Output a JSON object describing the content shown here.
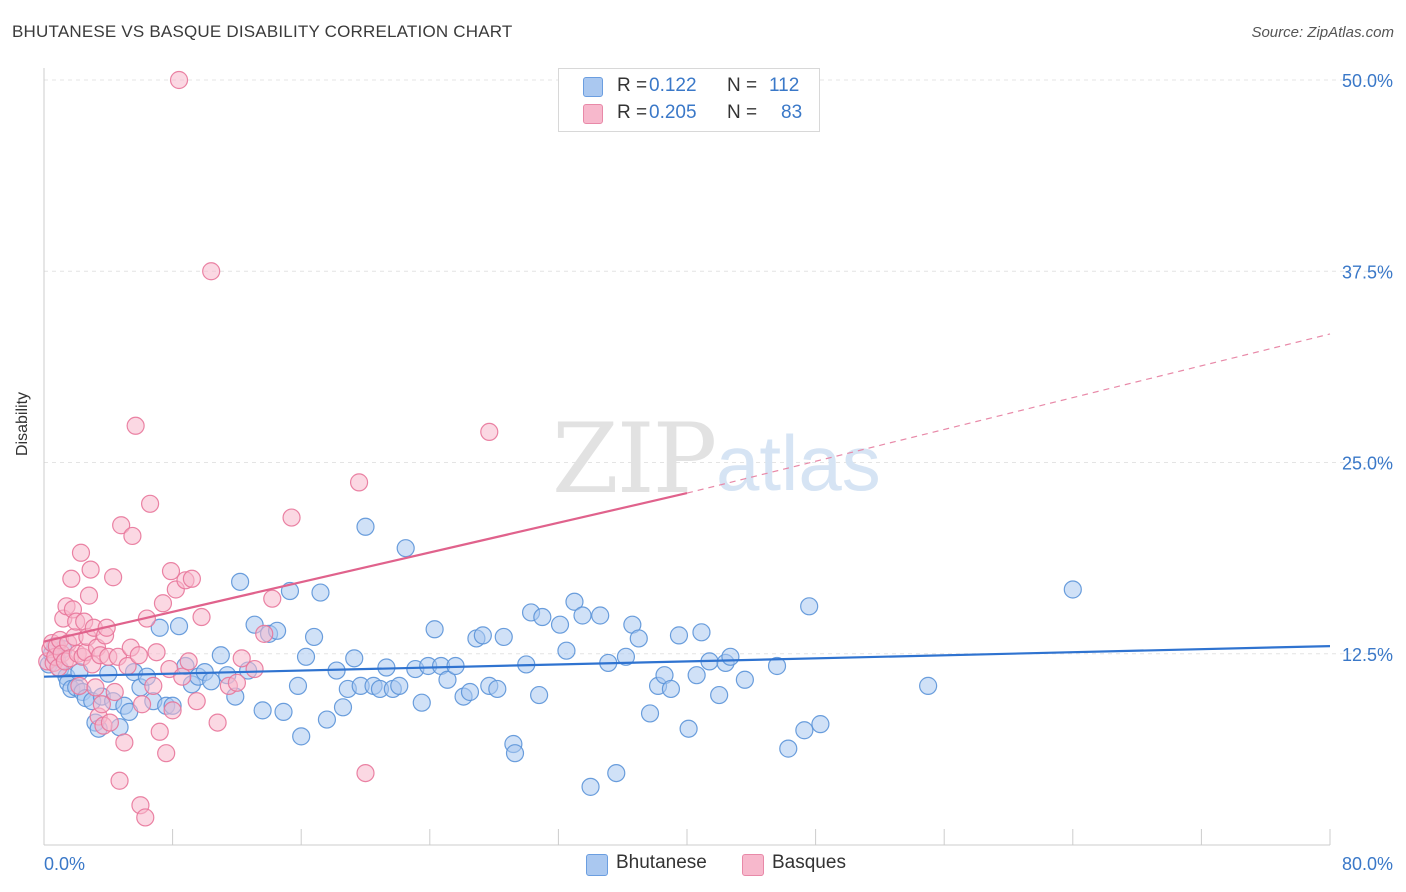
{
  "title": "BHUTANESE VS BASQUE DISABILITY CORRELATION CHART",
  "source": "Source: ZipAtlas.com",
  "watermark": {
    "zip": "ZIP",
    "atlas": "atlas"
  },
  "legend_top": [
    {
      "r_label": "R =",
      "r_value": "0.122",
      "n_label": "N =",
      "n_value": "112",
      "color": "#aac8f0"
    },
    {
      "r_label": "R =",
      "r_value": "0.205",
      "n_label": "N =",
      "n_value": "83",
      "color": "#f7b8cc"
    }
  ],
  "legend_bottom": [
    {
      "label": "Bhutanese",
      "color": "#aac8f0"
    },
    {
      "label": "Basques",
      "color": "#f7b8cc"
    }
  ],
  "chart_data": {
    "type": "scatter",
    "title": "BHUTANESE VS BASQUE DISABILITY CORRELATION CHART",
    "xlabel": "",
    "ylabel": "Disability",
    "xlim": [
      0,
      80
    ],
    "ylim": [
      0,
      50
    ],
    "x_tick_labels": [
      "0.0%",
      "80.0%"
    ],
    "y_ticks": [
      12.5,
      25.0,
      37.5,
      50.0
    ],
    "y_tick_labels": [
      "12.5%",
      "25.0%",
      "37.5%",
      "50.0%"
    ],
    "grid": true,
    "legend_position": "top-center",
    "series": [
      {
        "name": "Bhutanese",
        "color": "#5b93d8",
        "fill": "#aac8f0",
        "trend": {
          "x": [
            0,
            80
          ],
          "y": [
            11.0,
            13.0
          ],
          "style": "solid"
        },
        "points": [
          [
            0.3,
            11.8
          ],
          [
            0.5,
            12.5
          ],
          [
            0.7,
            13.0
          ],
          [
            0.8,
            12.2
          ],
          [
            1.0,
            11.5
          ],
          [
            1.2,
            12.8
          ],
          [
            1.4,
            11.0
          ],
          [
            1.5,
            10.6
          ],
          [
            1.7,
            10.2
          ],
          [
            2.0,
            10.3
          ],
          [
            2.2,
            11.3
          ],
          [
            2.4,
            10.0
          ],
          [
            2.6,
            9.6
          ],
          [
            3.0,
            9.4
          ],
          [
            3.2,
            8.0
          ],
          [
            3.4,
            7.6
          ],
          [
            3.6,
            9.7
          ],
          [
            4.0,
            11.2
          ],
          [
            4.3,
            9.4
          ],
          [
            4.7,
            7.7
          ],
          [
            5.0,
            9.1
          ],
          [
            5.3,
            8.7
          ],
          [
            5.6,
            11.3
          ],
          [
            6.0,
            10.3
          ],
          [
            6.4,
            11.0
          ],
          [
            6.8,
            9.4
          ],
          [
            7.2,
            14.2
          ],
          [
            7.6,
            9.1
          ],
          [
            8.0,
            9.1
          ],
          [
            8.4,
            14.3
          ],
          [
            8.8,
            11.7
          ],
          [
            9.2,
            10.5
          ],
          [
            9.6,
            11.0
          ],
          [
            10.0,
            11.3
          ],
          [
            10.4,
            10.7
          ],
          [
            11.0,
            12.4
          ],
          [
            11.4,
            11.1
          ],
          [
            11.9,
            9.7
          ],
          [
            12.2,
            17.2
          ],
          [
            12.7,
            11.4
          ],
          [
            13.1,
            14.4
          ],
          [
            13.6,
            8.8
          ],
          [
            14.0,
            13.8
          ],
          [
            14.5,
            14.0
          ],
          [
            14.9,
            8.7
          ],
          [
            15.3,
            16.6
          ],
          [
            15.8,
            10.4
          ],
          [
            16.0,
            7.1
          ],
          [
            16.3,
            12.3
          ],
          [
            16.8,
            13.6
          ],
          [
            17.2,
            16.5
          ],
          [
            17.6,
            8.2
          ],
          [
            18.2,
            11.4
          ],
          [
            18.6,
            9.0
          ],
          [
            18.9,
            10.2
          ],
          [
            19.3,
            12.2
          ],
          [
            19.7,
            10.4
          ],
          [
            20.0,
            20.8
          ],
          [
            20.5,
            10.4
          ],
          [
            20.9,
            10.2
          ],
          [
            21.3,
            11.6
          ],
          [
            21.7,
            10.2
          ],
          [
            22.1,
            10.4
          ],
          [
            22.5,
            19.4
          ],
          [
            23.1,
            11.5
          ],
          [
            23.5,
            9.3
          ],
          [
            23.9,
            11.7
          ],
          [
            24.3,
            14.1
          ],
          [
            24.7,
            11.7
          ],
          [
            25.1,
            10.8
          ],
          [
            25.6,
            11.7
          ],
          [
            26.1,
            9.7
          ],
          [
            26.5,
            10.0
          ],
          [
            26.9,
            13.5
          ],
          [
            27.3,
            13.7
          ],
          [
            27.7,
            10.4
          ],
          [
            28.2,
            10.2
          ],
          [
            28.6,
            13.6
          ],
          [
            29.2,
            6.6
          ],
          [
            29.3,
            6.0
          ],
          [
            30.0,
            11.8
          ],
          [
            30.3,
            15.2
          ],
          [
            30.8,
            9.8
          ],
          [
            31.0,
            14.9
          ],
          [
            32.1,
            14.4
          ],
          [
            32.5,
            12.7
          ],
          [
            33.0,
            15.9
          ],
          [
            33.5,
            15.0
          ],
          [
            34.0,
            3.8
          ],
          [
            34.6,
            15.0
          ],
          [
            35.1,
            11.9
          ],
          [
            35.6,
            4.7
          ],
          [
            36.2,
            12.3
          ],
          [
            36.6,
            14.4
          ],
          [
            37.0,
            13.5
          ],
          [
            37.7,
            8.6
          ],
          [
            38.2,
            10.4
          ],
          [
            38.6,
            11.1
          ],
          [
            39.0,
            10.2
          ],
          [
            39.5,
            13.7
          ],
          [
            40.1,
            7.6
          ],
          [
            40.6,
            11.1
          ],
          [
            40.9,
            13.9
          ],
          [
            41.4,
            12.0
          ],
          [
            42.0,
            9.8
          ],
          [
            42.4,
            11.9
          ],
          [
            42.7,
            12.3
          ],
          [
            43.6,
            10.8
          ],
          [
            45.6,
            11.7
          ],
          [
            46.3,
            6.3
          ],
          [
            47.3,
            7.5
          ],
          [
            47.6,
            15.6
          ],
          [
            48.3,
            7.9
          ],
          [
            55.0,
            10.4
          ],
          [
            64.0,
            16.7
          ]
        ]
      },
      {
        "name": "Basques",
        "color": "#e8769a",
        "fill": "#f7b8cc",
        "trend": {
          "x": [
            0,
            40
          ],
          "y": [
            13.3,
            23.0
          ],
          "style": "solid",
          "extended": {
            "x": [
              40,
              80
            ],
            "y": [
              23.0,
              33.4
            ],
            "style": "dashed"
          }
        },
        "points": [
          [
            0.2,
            12.0
          ],
          [
            0.4,
            12.8
          ],
          [
            0.5,
            13.2
          ],
          [
            0.6,
            11.9
          ],
          [
            0.7,
            12.3
          ],
          [
            0.8,
            13.0
          ],
          [
            0.9,
            11.6
          ],
          [
            1.0,
            13.4
          ],
          [
            1.1,
            12.5
          ],
          [
            1.2,
            14.8
          ],
          [
            1.3,
            12.0
          ],
          [
            1.4,
            15.6
          ],
          [
            1.5,
            13.2
          ],
          [
            1.6,
            12.2
          ],
          [
            1.7,
            17.4
          ],
          [
            1.8,
            15.4
          ],
          [
            1.9,
            13.6
          ],
          [
            2.0,
            14.6
          ],
          [
            2.1,
            12.5
          ],
          [
            2.2,
            10.4
          ],
          [
            2.3,
            19.1
          ],
          [
            2.4,
            12.3
          ],
          [
            2.5,
            14.6
          ],
          [
            2.6,
            12.6
          ],
          [
            2.7,
            13.6
          ],
          [
            2.8,
            16.3
          ],
          [
            2.9,
            18.0
          ],
          [
            3.0,
            11.8
          ],
          [
            3.1,
            14.2
          ],
          [
            3.2,
            10.3
          ],
          [
            3.3,
            12.9
          ],
          [
            3.4,
            8.4
          ],
          [
            3.5,
            12.4
          ],
          [
            3.6,
            9.2
          ],
          [
            3.7,
            7.8
          ],
          [
            3.8,
            13.7
          ],
          [
            3.9,
            14.2
          ],
          [
            4.0,
            12.3
          ],
          [
            4.1,
            8.0
          ],
          [
            4.3,
            17.5
          ],
          [
            4.4,
            10.0
          ],
          [
            4.6,
            12.3
          ],
          [
            4.7,
            4.2
          ],
          [
            4.8,
            20.9
          ],
          [
            5.0,
            6.7
          ],
          [
            5.2,
            11.7
          ],
          [
            5.4,
            12.9
          ],
          [
            5.5,
            20.2
          ],
          [
            5.7,
            27.4
          ],
          [
            5.9,
            12.4
          ],
          [
            6.0,
            2.6
          ],
          [
            6.1,
            9.2
          ],
          [
            6.3,
            1.8
          ],
          [
            6.4,
            14.8
          ],
          [
            6.6,
            22.3
          ],
          [
            6.8,
            10.4
          ],
          [
            7.0,
            12.6
          ],
          [
            7.2,
            7.4
          ],
          [
            7.4,
            15.8
          ],
          [
            7.6,
            6.0
          ],
          [
            7.8,
            11.5
          ],
          [
            7.9,
            17.9
          ],
          [
            8.0,
            8.8
          ],
          [
            8.2,
            16.7
          ],
          [
            8.4,
            50.0
          ],
          [
            8.6,
            11.0
          ],
          [
            8.8,
            17.3
          ],
          [
            9.0,
            12.0
          ],
          [
            9.2,
            17.4
          ],
          [
            9.5,
            9.4
          ],
          [
            9.8,
            14.9
          ],
          [
            10.4,
            37.5
          ],
          [
            10.8,
            8.0
          ],
          [
            11.5,
            10.4
          ],
          [
            12.0,
            10.6
          ],
          [
            12.3,
            12.2
          ],
          [
            13.1,
            11.5
          ],
          [
            13.7,
            13.8
          ],
          [
            14.2,
            16.1
          ],
          [
            15.4,
            21.4
          ],
          [
            19.6,
            23.7
          ],
          [
            20.0,
            4.7
          ],
          [
            27.7,
            27.0
          ]
        ]
      }
    ]
  }
}
